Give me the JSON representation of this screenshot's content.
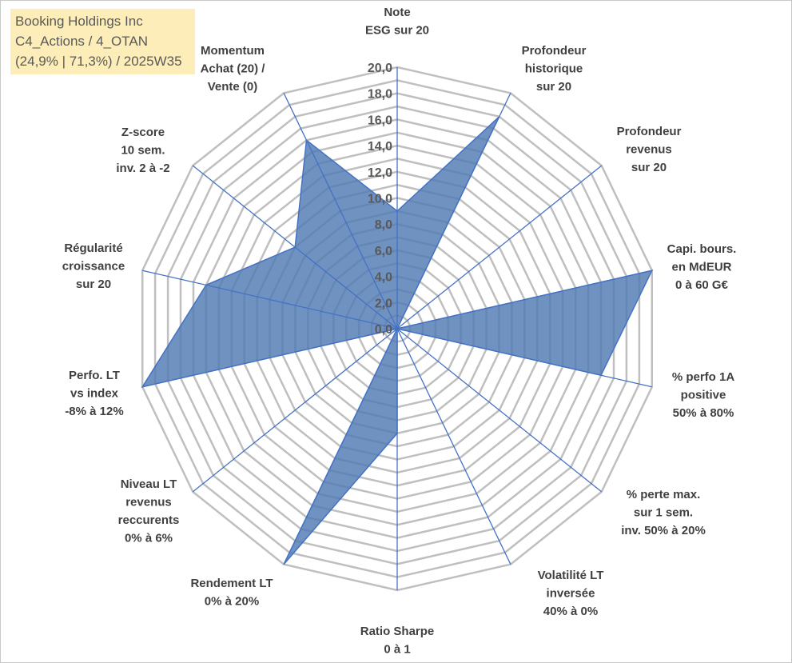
{
  "title_box": {
    "line1": "Booking Holdings Inc",
    "line2": "C4_Actions / 4_OTAN",
    "line3": "(24,9% | 71,3%) / 2025W35",
    "background": "#fdeeb9"
  },
  "chart_data": {
    "type": "radar",
    "rmin": 0,
    "rmax": 20,
    "step": 1,
    "tick_labels": [
      "0,0",
      "2,0",
      "4,0",
      "6,0",
      "8,0",
      "10,0",
      "12,0",
      "14,0",
      "16,0",
      "18,0",
      "20,0"
    ],
    "fill_color": "#4f7ab3",
    "line_color": "#4472c4",
    "grid_color": "#bfbfbf",
    "axes": [
      {
        "label": [
          "Note",
          "ESG sur 20"
        ],
        "value": 9.0
      },
      {
        "label": [
          "Profondeur",
          "historique",
          "sur 20"
        ],
        "value": 18.0
      },
      {
        "label": [
          "Profondeur",
          "revenus",
          "sur 20"
        ],
        "value": 0.0
      },
      {
        "label": [
          "Capi. bours.",
          "en MdEUR",
          "0 à 60 G€"
        ],
        "value": 20.0
      },
      {
        "label": [
          "% perfo 1A",
          "positive",
          "50% à 80%"
        ],
        "value": 16.0
      },
      {
        "label": [
          "% perte max.",
          "sur 1 sem.",
          "inv. 50% à 20%"
        ],
        "value": 0.0
      },
      {
        "label": [
          "Volatilité LT",
          "inversée",
          "40% à 0%"
        ],
        "value": 0.0
      },
      {
        "label": [
          "Ratio Sharpe",
          "0 à 1"
        ],
        "value": 8.0
      },
      {
        "label": [
          "Rendement LT",
          "0% à 20%"
        ],
        "value": 20.0
      },
      {
        "label": [
          "Niveau LT",
          "revenus",
          "reccurents",
          "0% à 6%"
        ],
        "value": 0.0
      },
      {
        "label": [
          "Perfo. LT",
          "vs index",
          "-8% à 12%"
        ],
        "value": 20.0
      },
      {
        "label": [
          "Régularité",
          "croissance",
          "sur 20"
        ],
        "value": 15.0
      },
      {
        "label": [
          "Z-score",
          "10 sem.",
          "inv. 2 à -2"
        ],
        "value": 10.0
      },
      {
        "label": [
          "Momentum",
          "Achat (20) /",
          "Vente (0)"
        ],
        "value": 16.0
      }
    ]
  }
}
